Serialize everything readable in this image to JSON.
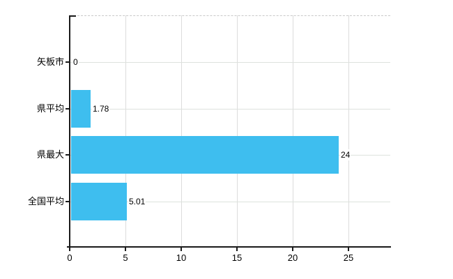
{
  "chart_data": {
    "type": "bar",
    "orientation": "horizontal",
    "title": "",
    "xlabel": "",
    "ylabel": "",
    "categories": [
      "矢板市",
      "県平均",
      "県最大",
      "全国平均"
    ],
    "values": [
      0,
      1.78,
      24,
      5.01
    ],
    "value_labels": [
      "0",
      "1.78",
      "24",
      "5.01"
    ],
    "x_ticks": [
      "0",
      "5",
      "10",
      "15",
      "20",
      "25"
    ],
    "x_tick_values": [
      0,
      5,
      10,
      15,
      20,
      25
    ],
    "xlim": [
      0,
      28.75
    ],
    "grid": true,
    "legend": false,
    "colors": {
      "bar": "#3EBEEF",
      "axis": "#1a1a1a",
      "vertical_gridline": "#dcdcdc",
      "horizontal_gridline": "#dde2dd",
      "top_border": "#c9c9c9",
      "text": "#000000",
      "background": "#ffffff"
    }
  }
}
